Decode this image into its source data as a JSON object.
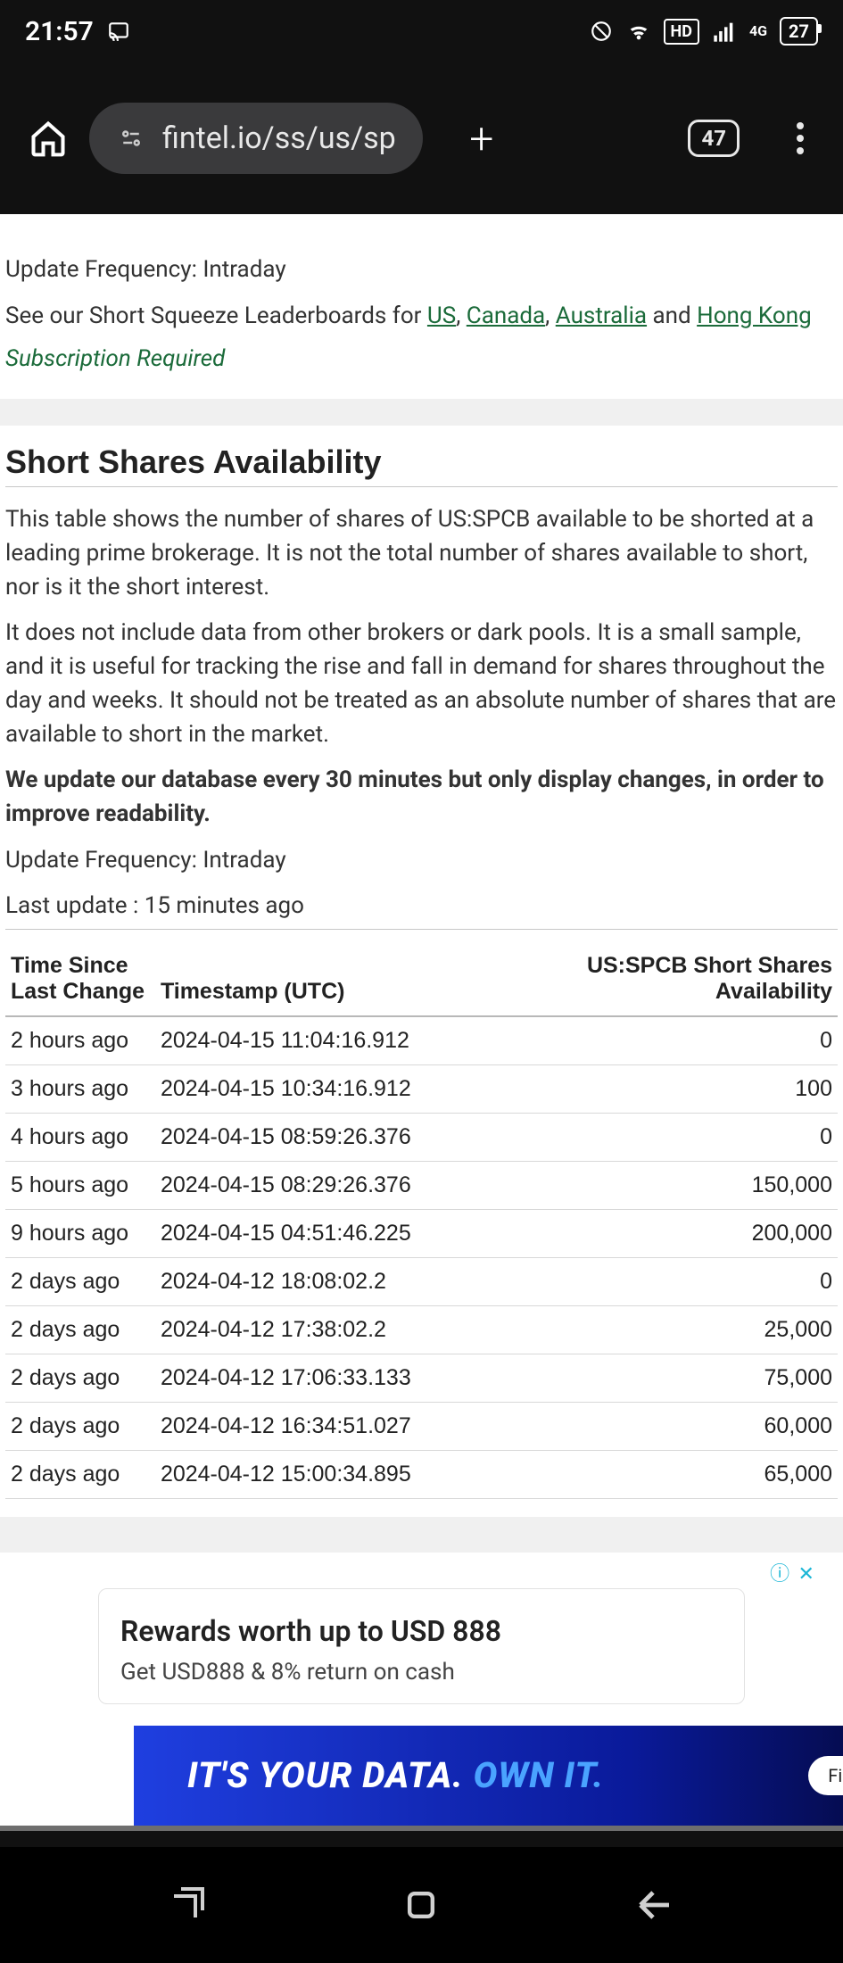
{
  "status": {
    "time": "21:57",
    "battery": "27",
    "net": "4G",
    "hd": "HD"
  },
  "browser": {
    "url": "fintel.io/ss/us/sp",
    "tab_count": "47"
  },
  "top_panel": {
    "update_freq": "Update Frequency: Intraday",
    "leaderboard_prefix": "See our Short Squeeze Leaderboards for ",
    "links": {
      "us": "US",
      "ca": "Canada",
      "au": "Australia",
      "hk": "Hong Kong"
    },
    "and": " and ",
    "sub_required": "Subscription Required"
  },
  "section": {
    "title": "Short Shares Availability",
    "p1": "This table shows the number of shares of US:SPCB available to be shorted at a leading prime brokerage. It is not the total number of shares available to short, nor is it the short interest.",
    "p2": "It does not include data from other brokers or dark pools. It is a small sample, and it is useful for tracking the rise and fall in demand for shares throughout the day and weeks. It should not be treated as an absolute number of shares that are available to short in the market.",
    "p3": "We update our database every 30 minutes but only display changes, in order to improve readability.",
    "update_freq": "Update Frequency: Intraday",
    "last_update": "Last update : 15 minutes ago",
    "columns": {
      "time_since": "Time Since Last Change",
      "timestamp": "Timestamp (UTC)",
      "availability": "US:SPCB Short Shares Availability"
    },
    "rows": [
      {
        "since": "2 hours ago",
        "ts": "2024-04-15 11:04:16.912",
        "avail": "0"
      },
      {
        "since": "3 hours ago",
        "ts": "2024-04-15 10:34:16.912",
        "avail": "100"
      },
      {
        "since": "4 hours ago",
        "ts": "2024-04-15 08:59:26.376",
        "avail": "0"
      },
      {
        "since": "5 hours ago",
        "ts": "2024-04-15 08:29:26.376",
        "avail": "150,000"
      },
      {
        "since": "9 hours ago",
        "ts": "2024-04-15 04:51:46.225",
        "avail": "200,000"
      },
      {
        "since": "2 days ago",
        "ts": "2024-04-12 18:08:02.2",
        "avail": "0"
      },
      {
        "since": "2 days ago",
        "ts": "2024-04-12 17:38:02.2",
        "avail": "25,000"
      },
      {
        "since": "2 days ago",
        "ts": "2024-04-12 17:06:33.133",
        "avail": "75,000"
      },
      {
        "since": "2 days ago",
        "ts": "2024-04-12 16:34:51.027",
        "avail": "60,000"
      },
      {
        "since": "2 days ago",
        "ts": "2024-04-12 15:00:34.895",
        "avail": "65,000"
      }
    ]
  },
  "ad": {
    "info": "ⓘ ✕",
    "card_title": "Rewards worth up to USD 888",
    "card_sub": "Get USD888 & 8% return on cash",
    "banner_main": "IT'S YOUR DATA. ",
    "banner_accent": "OWN IT.",
    "banner_pill": "Fir"
  }
}
